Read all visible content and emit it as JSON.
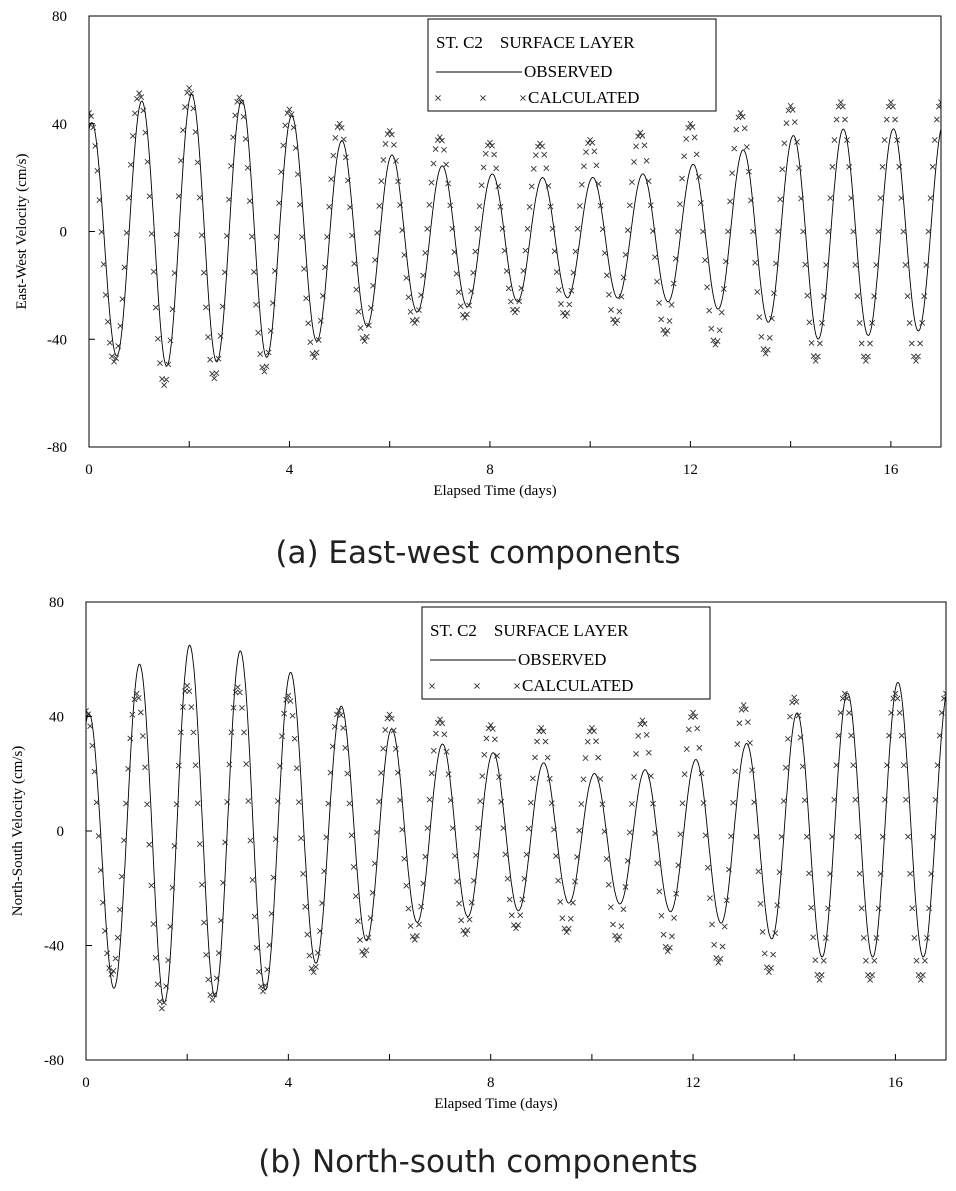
{
  "chart_data": [
    {
      "type": "line",
      "panel_id": "a",
      "caption": "(a) East-west components",
      "xlabel": "Elapsed Time (days)",
      "ylabel": "East-West Velocity (cm/s)",
      "xlim": [
        0,
        17
      ],
      "ylim": [
        -80,
        80
      ],
      "xticks": [
        "0",
        "4",
        "8",
        "12",
        "16"
      ],
      "yticks": [
        "80",
        "40",
        "0",
        "-40",
        "-80"
      ],
      "legend": {
        "title": "ST. C2    SURFACE LAYER",
        "entries": [
          "OBSERVED",
          "CALCULATED"
        ]
      },
      "series": [
        {
          "name": "OBSERVED",
          "style": "line",
          "period_days": 1.0,
          "phase_days": 0.05,
          "envelope": {
            "t": [
              0,
              1.5,
              3.5,
              5,
              6.5,
              8.5,
              10,
              11.5,
              13,
              14.5,
              16,
              17
            ],
            "upper": [
              40,
              52,
              48,
              34,
              26,
              20,
              20,
              22,
              30,
              38,
              38,
              40
            ],
            "lower": [
              -44,
              -50,
              -47,
              -38,
              -30,
              -26,
              -24,
              -26,
              -30,
              -40,
              -38,
              -36
            ]
          }
        },
        {
          "name": "CALCULATED",
          "style": "markers",
          "period_days": 1.0,
          "phase_days": 0.0,
          "envelope": {
            "t": [
              0,
              1.5,
              3.5,
              5,
              6.5,
              8.5,
              10,
              11.5,
              13,
              14.5,
              16,
              17
            ],
            "upper": [
              44,
              55,
              48,
              40,
              36,
              32,
              34,
              38,
              44,
              48,
              48,
              48
            ],
            "lower": [
              -44,
              -57,
              -52,
              -44,
              -34,
              -30,
              -32,
              -38,
              -44,
              -48,
              -48,
              -48
            ]
          }
        }
      ]
    },
    {
      "type": "line",
      "panel_id": "b",
      "caption": "(b) North-south components",
      "xlabel": "Elapsed Time (days)",
      "ylabel": "North-South Velocity (cm/s)",
      "xlim": [
        0,
        17
      ],
      "ylim": [
        -80,
        80
      ],
      "xticks": [
        "0",
        "4",
        "8",
        "12",
        "16"
      ],
      "yticks": [
        "80",
        "40",
        "0",
        "-40",
        "-80"
      ],
      "legend": {
        "title": "ST. C2    SURFACE LAYER",
        "entries": [
          "OBSERVED",
          "CALCULATED"
        ]
      },
      "series": [
        {
          "name": "OBSERVED",
          "style": "line",
          "period_days": 1.0,
          "phase_days": 0.05,
          "envelope": {
            "t": [
              0,
              1.5,
              3.5,
              5,
              6.5,
              8.5,
              10,
              11.5,
              13,
              14.5,
              16,
              17
            ],
            "upper": [
              40,
              66,
              62,
              44,
              32,
              26,
              20,
              22,
              30,
              46,
              52,
              50
            ],
            "lower": [
              -52,
              -60,
              -56,
              -42,
              -32,
              -28,
              -24,
              -28,
              -34,
              -44,
              -44,
              -44
            ]
          }
        },
        {
          "name": "CALCULATED",
          "style": "markers",
          "period_days": 1.0,
          "phase_days": 0.0,
          "envelope": {
            "t": [
              0,
              1.5,
              3.5,
              5,
              6.5,
              8.5,
              10,
              11.5,
              13,
              14.5,
              16,
              17
            ],
            "upper": [
              42,
              51,
              50,
              42,
              40,
              36,
              36,
              40,
              44,
              48,
              48,
              48
            ],
            "lower": [
              -44,
              -62,
              -56,
              -46,
              -38,
              -34,
              -36,
              -42,
              -48,
              -52,
              -52,
              -52
            ]
          }
        }
      ]
    }
  ]
}
